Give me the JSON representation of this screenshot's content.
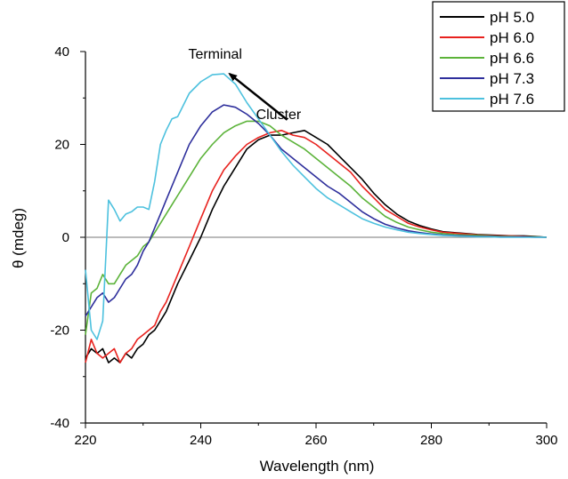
{
  "chart_data": {
    "type": "line",
    "xlabel": "Wavelength (nm)",
    "ylabel": "θ (mdeg)",
    "xlim": [
      220,
      300
    ],
    "ylim": [
      -40,
      40
    ],
    "x_ticks": [
      220,
      240,
      260,
      280,
      300
    ],
    "y_ticks": [
      -40,
      -20,
      0,
      20,
      40
    ],
    "x_tick_labels": [
      "220",
      "240",
      "260",
      "280",
      "300"
    ],
    "y_tick_labels": [
      "-40",
      "-20",
      "0",
      "20",
      "40"
    ],
    "zero_line": true,
    "grid": false,
    "legend_position": "top-right",
    "annotations": [
      {
        "text": "Terminal",
        "x": 242.5,
        "y": 38.5
      },
      {
        "text": "Cluster",
        "x": 253.5,
        "y": 25.5
      }
    ],
    "arrow": {
      "from": [
        255,
        25.3
      ],
      "to": [
        245,
        35.2
      ]
    },
    "series": [
      {
        "name": "pH 5.0",
        "color": "#000000",
        "x": [
          220,
          221,
          222,
          223,
          224,
          225,
          226,
          227,
          228,
          229,
          230,
          231,
          232,
          233,
          234,
          235,
          236,
          238,
          240,
          242,
          244,
          246,
          248,
          250,
          252,
          254,
          256,
          258,
          260,
          262,
          264,
          266,
          268,
          270,
          272,
          274,
          276,
          278,
          280,
          282,
          284,
          286,
          288,
          290,
          292,
          294,
          296,
          298,
          300
        ],
        "y": [
          -26,
          -24,
          -25,
          -24,
          -27,
          -26,
          -27,
          -25,
          -26,
          -24,
          -23,
          -21,
          -20,
          -18,
          -16,
          -13,
          -10,
          -5,
          0,
          6,
          11,
          15,
          19,
          21,
          22,
          22,
          22.5,
          23,
          21.5,
          20,
          17.5,
          15,
          12.5,
          9.5,
          7,
          5,
          3.5,
          2.5,
          1.8,
          1.2,
          1,
          0.8,
          0.6,
          0.5,
          0.4,
          0.3,
          0.3,
          0.2,
          0
        ]
      },
      {
        "name": "pH 6.0",
        "color": "#e8221e",
        "x": [
          220,
          221,
          222,
          223,
          224,
          225,
          226,
          227,
          228,
          229,
          230,
          231,
          232,
          233,
          234,
          235,
          236,
          238,
          240,
          242,
          244,
          246,
          248,
          250,
          252,
          254,
          256,
          258,
          260,
          262,
          264,
          266,
          268,
          270,
          272,
          274,
          276,
          278,
          280,
          282,
          284,
          286,
          288,
          290,
          292,
          294,
          296,
          298,
          300
        ],
        "y": [
          -27,
          -22,
          -25,
          -26,
          -25,
          -24,
          -27,
          -25,
          -24,
          -22,
          -21,
          -20,
          -19,
          -16,
          -14,
          -11,
          -8,
          -2,
          4,
          10,
          14.5,
          17.5,
          20,
          21.5,
          22.5,
          23,
          22,
          21.5,
          20,
          18,
          16,
          14,
          11,
          8.5,
          6,
          4.5,
          3,
          2.2,
          1.6,
          1.1,
          0.9,
          0.7,
          0.5,
          0.4,
          0.3,
          0.3,
          0.2,
          0.1,
          0
        ]
      },
      {
        "name": "pH 6.6",
        "color": "#5cb33a",
        "x": [
          220,
          221,
          222,
          223,
          224,
          225,
          226,
          227,
          228,
          229,
          230,
          231,
          232,
          233,
          234,
          235,
          236,
          238,
          240,
          242,
          244,
          246,
          248,
          250,
          252,
          254,
          256,
          258,
          260,
          262,
          264,
          266,
          268,
          270,
          272,
          274,
          276,
          278,
          280,
          282,
          284,
          286,
          288,
          290,
          292,
          294,
          296,
          298,
          300
        ],
        "y": [
          -21,
          -12,
          -11,
          -8,
          -10,
          -10,
          -8,
          -6,
          -5,
          -4,
          -2,
          -1,
          1,
          3,
          5,
          7,
          9,
          13,
          17,
          20,
          22.5,
          24,
          25,
          25,
          24,
          22,
          20.5,
          19,
          17,
          15,
          13,
          11,
          8.5,
          6.5,
          4.5,
          3.2,
          2.2,
          1.6,
          1.1,
          0.8,
          0.6,
          0.5,
          0.4,
          0.3,
          0.2,
          0.2,
          0.1,
          0.1,
          0
        ]
      },
      {
        "name": "pH 7.3",
        "color": "#2e2f9c",
        "x": [
          220,
          221,
          222,
          223,
          224,
          225,
          226,
          227,
          228,
          229,
          230,
          231,
          232,
          233,
          234,
          235,
          236,
          238,
          240,
          242,
          244,
          246,
          248,
          250,
          252,
          254,
          256,
          258,
          260,
          262,
          264,
          266,
          268,
          270,
          272,
          274,
          276,
          278,
          280,
          282,
          284,
          286,
          288,
          290,
          292,
          294,
          296,
          298,
          300
        ],
        "y": [
          -17,
          -15,
          -13,
          -12,
          -14,
          -13,
          -11,
          -9,
          -8,
          -6,
          -3,
          -1,
          2,
          5,
          8,
          11,
          14,
          20,
          24,
          27,
          28.5,
          28,
          26.5,
          24.5,
          22,
          19,
          17,
          15,
          13,
          11,
          9.5,
          7.5,
          5.5,
          4,
          2.8,
          2,
          1.4,
          1,
          0.7,
          0.5,
          0.4,
          0.3,
          0.2,
          0.2,
          0.1,
          0.1,
          0.1,
          0,
          0
        ]
      },
      {
        "name": "pH 7.6",
        "color": "#4dc1de",
        "x": [
          220,
          221,
          222,
          223,
          224,
          225,
          226,
          227,
          228,
          229,
          230,
          231,
          232,
          233,
          234,
          235,
          236,
          238,
          240,
          242,
          244,
          246,
          248,
          250,
          252,
          254,
          256,
          258,
          260,
          262,
          264,
          266,
          268,
          270,
          272,
          274,
          276,
          278,
          280,
          282,
          284,
          286,
          288,
          290,
          292,
          294,
          296,
          298,
          300
        ],
        "y": [
          -7,
          -20,
          -22,
          -18,
          8,
          6,
          3.5,
          5,
          5.5,
          6.5,
          6.5,
          6,
          12,
          20,
          23,
          25.5,
          26,
          31,
          33.5,
          35,
          35.2,
          33,
          29,
          25.5,
          22,
          18.5,
          15.5,
          13,
          10.5,
          8.5,
          7,
          5.5,
          4,
          3,
          2.2,
          1.6,
          1.1,
          0.8,
          0.6,
          0.4,
          0.3,
          0.2,
          0.1,
          0.1,
          0,
          0,
          0,
          0,
          0
        ]
      }
    ]
  }
}
